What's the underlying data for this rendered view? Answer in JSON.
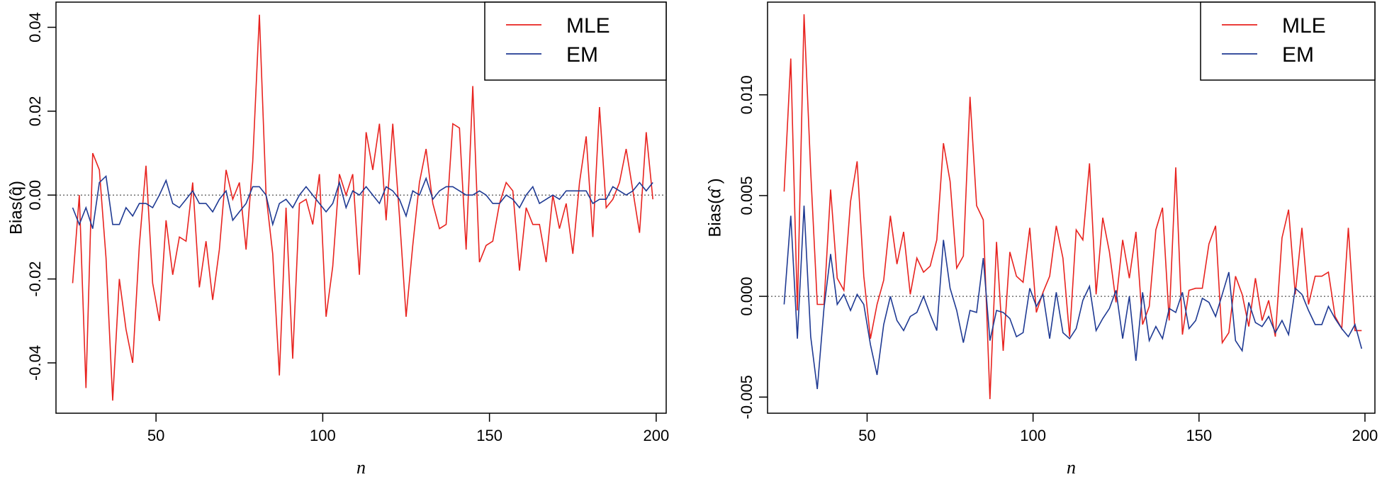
{
  "chart_data": [
    {
      "type": "line",
      "title": "",
      "xlabel": "n",
      "ylabel": "Bias(q̂)",
      "xlim": [
        20,
        203
      ],
      "ylim": [
        -0.052,
        0.046
      ],
      "xticks": [
        50,
        100,
        150,
        200
      ],
      "yticks": [
        -0.04,
        -0.02,
        0.0,
        0.02,
        0.04
      ],
      "ytick_labels": [
        "-0.04",
        "-0.02",
        "0.00",
        "0.02",
        "0.04"
      ],
      "reference_line": 0,
      "grid": false,
      "legend": {
        "position": "top-right",
        "entries": [
          "MLE",
          "EM"
        ]
      },
      "colors": {
        "MLE": "#e8231f",
        "EM": "#1f3a93",
        "reference": "#555555"
      },
      "series": [
        {
          "name": "MLE",
          "x": [
            25,
            27,
            29,
            31,
            33,
            35,
            37,
            39,
            41,
            43,
            45,
            47,
            49,
            51,
            53,
            55,
            57,
            59,
            61,
            63,
            65,
            67,
            69,
            71,
            73,
            75,
            77,
            79,
            81,
            83,
            85,
            87,
            89,
            91,
            93,
            95,
            97,
            99,
            101,
            103,
            105,
            107,
            109,
            111,
            113,
            115,
            117,
            119,
            121,
            123,
            125,
            127,
            129,
            131,
            133,
            135,
            137,
            139,
            141,
            143,
            145,
            147,
            149,
            151,
            153,
            155,
            157,
            159,
            161,
            163,
            165,
            167,
            169,
            171,
            173,
            175,
            177,
            179,
            181,
            183,
            185,
            187,
            189,
            191,
            193,
            195,
            197,
            199
          ],
          "values": [
            -0.021,
            0.0,
            -0.046,
            0.01,
            0.006,
            -0.015,
            -0.049,
            -0.02,
            -0.032,
            -0.04,
            -0.012,
            0.007,
            -0.021,
            -0.03,
            -0.006,
            -0.019,
            -0.01,
            -0.011,
            0.003,
            -0.022,
            -0.011,
            -0.025,
            -0.013,
            0.006,
            -0.001,
            0.003,
            -0.013,
            0.008,
            0.043,
            0.0,
            -0.014,
            -0.043,
            -0.003,
            -0.039,
            -0.002,
            -0.001,
            -0.007,
            0.005,
            -0.029,
            -0.017,
            0.005,
            0.0,
            0.005,
            -0.019,
            0.015,
            0.006,
            0.017,
            -0.006,
            0.017,
            -0.005,
            -0.029,
            -0.012,
            0.003,
            0.011,
            -0.002,
            -0.008,
            -0.007,
            0.017,
            0.016,
            -0.013,
            0.026,
            -0.016,
            -0.012,
            -0.011,
            -0.002,
            0.003,
            0.001,
            -0.018,
            -0.003,
            -0.007,
            -0.007,
            -0.016,
            0.0,
            -0.008,
            -0.002,
            -0.014,
            0.003,
            0.014,
            -0.01,
            0.021,
            -0.003,
            -0.001,
            0.003,
            0.011,
            0.001,
            -0.009,
            0.015,
            -0.001
          ]
        },
        {
          "name": "EM",
          "x": [
            25,
            27,
            29,
            31,
            33,
            35,
            37,
            39,
            41,
            43,
            45,
            47,
            49,
            51,
            53,
            55,
            57,
            59,
            61,
            63,
            65,
            67,
            69,
            71,
            73,
            75,
            77,
            79,
            81,
            83,
            85,
            87,
            89,
            91,
            93,
            95,
            97,
            99,
            101,
            103,
            105,
            107,
            109,
            111,
            113,
            115,
            117,
            119,
            121,
            123,
            125,
            127,
            129,
            131,
            133,
            135,
            137,
            139,
            141,
            143,
            145,
            147,
            149,
            151,
            153,
            155,
            157,
            159,
            161,
            163,
            165,
            167,
            169,
            171,
            173,
            175,
            177,
            179,
            181,
            183,
            185,
            187,
            189,
            191,
            193,
            195,
            197,
            199
          ],
          "values": [
            -0.003,
            -0.007,
            -0.003,
            -0.008,
            0.003,
            0.0045,
            -0.007,
            -0.007,
            -0.003,
            -0.005,
            -0.002,
            -0.002,
            -0.003,
            0.0,
            0.0035,
            -0.002,
            -0.003,
            -0.001,
            0.001,
            -0.002,
            -0.002,
            -0.004,
            -0.001,
            0.001,
            -0.006,
            -0.004,
            -0.002,
            0.002,
            0.002,
            0.0,
            -0.007,
            -0.002,
            -0.001,
            -0.003,
            0.0,
            0.002,
            0.0,
            -0.002,
            -0.004,
            -0.002,
            0.003,
            -0.003,
            0.001,
            0.0,
            0.002,
            0.0,
            -0.002,
            0.002,
            0.001,
            -0.001,
            -0.005,
            0.001,
            0.0,
            0.004,
            -0.001,
            0.001,
            0.002,
            0.002,
            0.001,
            0.0,
            0.0,
            0.001,
            0.0,
            -0.002,
            -0.002,
            0.0,
            -0.001,
            -0.003,
            0.0,
            0.002,
            -0.002,
            -0.001,
            0.0,
            -0.001,
            0.001,
            0.001,
            0.001,
            0.001,
            -0.002,
            -0.001,
            -0.001,
            0.002,
            0.001,
            0.0,
            0.001,
            0.003,
            0.001,
            0.003
          ]
        }
      ]
    },
    {
      "type": "line",
      "title": "",
      "xlabel": "n",
      "ylabel": "Bias(α̂ )",
      "xlim": [
        20,
        203
      ],
      "ylim": [
        -0.0058,
        0.0146
      ],
      "xticks": [
        50,
        100,
        150,
        200
      ],
      "yticks": [
        -0.005,
        0.0,
        0.005,
        0.01
      ],
      "ytick_labels": [
        "-0.005",
        "0.000",
        "0.005",
        "0.010"
      ],
      "reference_line": 0,
      "grid": false,
      "legend": {
        "position": "top-right",
        "entries": [
          "MLE",
          "EM"
        ]
      },
      "colors": {
        "MLE": "#e8231f",
        "EM": "#1f3a93",
        "reference": "#555555"
      },
      "series": [
        {
          "name": "MLE",
          "x": [
            25,
            27,
            29,
            31,
            33,
            35,
            37,
            39,
            41,
            43,
            45,
            47,
            49,
            51,
            53,
            55,
            57,
            59,
            61,
            63,
            65,
            67,
            69,
            71,
            73,
            75,
            77,
            79,
            81,
            83,
            85,
            87,
            89,
            91,
            93,
            95,
            97,
            99,
            101,
            103,
            105,
            107,
            109,
            111,
            113,
            115,
            117,
            119,
            121,
            123,
            125,
            127,
            129,
            131,
            133,
            135,
            137,
            139,
            141,
            143,
            145,
            147,
            149,
            151,
            153,
            155,
            157,
            159,
            161,
            163,
            165,
            167,
            169,
            171,
            173,
            175,
            177,
            179,
            181,
            183,
            185,
            187,
            189,
            191,
            193,
            195,
            197,
            199
          ],
          "values": [
            0.0052,
            0.0118,
            -0.0007,
            0.014,
            0.0062,
            -0.0004,
            -0.0004,
            0.0053,
            0.0009,
            0.0003,
            0.0047,
            0.0067,
            0.001,
            -0.0021,
            -0.0004,
            0.0008,
            0.004,
            0.0016,
            0.0032,
            0.0001,
            0.0019,
            0.0012,
            0.0015,
            0.0028,
            0.0076,
            0.0057,
            0.0014,
            0.002,
            0.0099,
            0.0045,
            0.0038,
            -0.0051,
            0.0027,
            -0.0027,
            0.0022,
            0.001,
            0.0007,
            0.0034,
            -0.0008,
            0.0002,
            0.001,
            0.0035,
            0.0019,
            -0.002,
            0.0033,
            0.0028,
            0.0066,
            0.0001,
            0.0039,
            0.0022,
            -0.0003,
            0.0028,
            0.0009,
            0.0032,
            -0.0014,
            -0.0005,
            0.0033,
            0.0044,
            -0.0012,
            0.0064,
            -0.0019,
            0.0003,
            0.0004,
            0.0004,
            0.0026,
            0.0035,
            -0.0023,
            -0.0018,
            0.001,
            0.0001,
            -0.0015,
            0.0009,
            -0.0012,
            -0.0002,
            -0.002,
            0.0029,
            0.0043,
            0.0001,
            0.0034,
            -0.0004,
            0.001,
            0.001,
            0.0012,
            -0.001,
            -0.0016,
            0.0034,
            -0.0017,
            -0.0017
          ]
        },
        {
          "name": "EM",
          "x": [
            25,
            27,
            29,
            31,
            33,
            35,
            37,
            39,
            41,
            43,
            45,
            47,
            49,
            51,
            53,
            55,
            57,
            59,
            61,
            63,
            65,
            67,
            69,
            71,
            73,
            75,
            77,
            79,
            81,
            83,
            85,
            87,
            89,
            91,
            93,
            95,
            97,
            99,
            101,
            103,
            105,
            107,
            109,
            111,
            113,
            115,
            117,
            119,
            121,
            123,
            125,
            127,
            129,
            131,
            133,
            135,
            137,
            139,
            141,
            143,
            145,
            147,
            149,
            151,
            153,
            155,
            157,
            159,
            161,
            163,
            165,
            167,
            169,
            171,
            173,
            175,
            177,
            179,
            181,
            183,
            185,
            187,
            189,
            191,
            193,
            195,
            197,
            199
          ],
          "values": [
            -0.0004,
            0.004,
            -0.0021,
            0.0045,
            -0.002,
            -0.0046,
            -0.0006,
            0.0021,
            -0.0004,
            0.0001,
            -0.0007,
            0.0001,
            -0.0004,
            -0.0024,
            -0.0039,
            -0.0014,
            -0.0,
            -0.0012,
            -0.0017,
            -0.001,
            -0.0008,
            -0.0,
            -0.0009,
            -0.0017,
            0.0028,
            0.0004,
            -0.0007,
            -0.0023,
            -0.0007,
            -0.0008,
            0.0019,
            -0.0022,
            -0.0007,
            -0.0008,
            -0.0011,
            -0.002,
            -0.0018,
            0.0004,
            -0.0005,
            0.0001,
            -0.0021,
            0.0002,
            -0.0018,
            -0.0021,
            -0.0016,
            -0.0002,
            0.0005,
            -0.0017,
            -0.0011,
            -0.0006,
            0.0003,
            -0.0021,
            0.0,
            -0.0032,
            0.0002,
            -0.0022,
            -0.0015,
            -0.0021,
            -0.0006,
            -0.0008,
            0.0002,
            -0.0016,
            -0.0012,
            -0.0001,
            -0.0003,
            -0.001,
            0.0001,
            0.0012,
            -0.0022,
            -0.0027,
            -0.0003,
            -0.0013,
            -0.0015,
            -0.001,
            -0.0018,
            -0.0012,
            -0.0019,
            0.0004,
            0.0001,
            -0.0007,
            -0.0014,
            -0.0014,
            -0.0005,
            -0.0011,
            -0.0016,
            -0.002,
            -0.0014,
            -0.0026
          ]
        }
      ]
    }
  ]
}
